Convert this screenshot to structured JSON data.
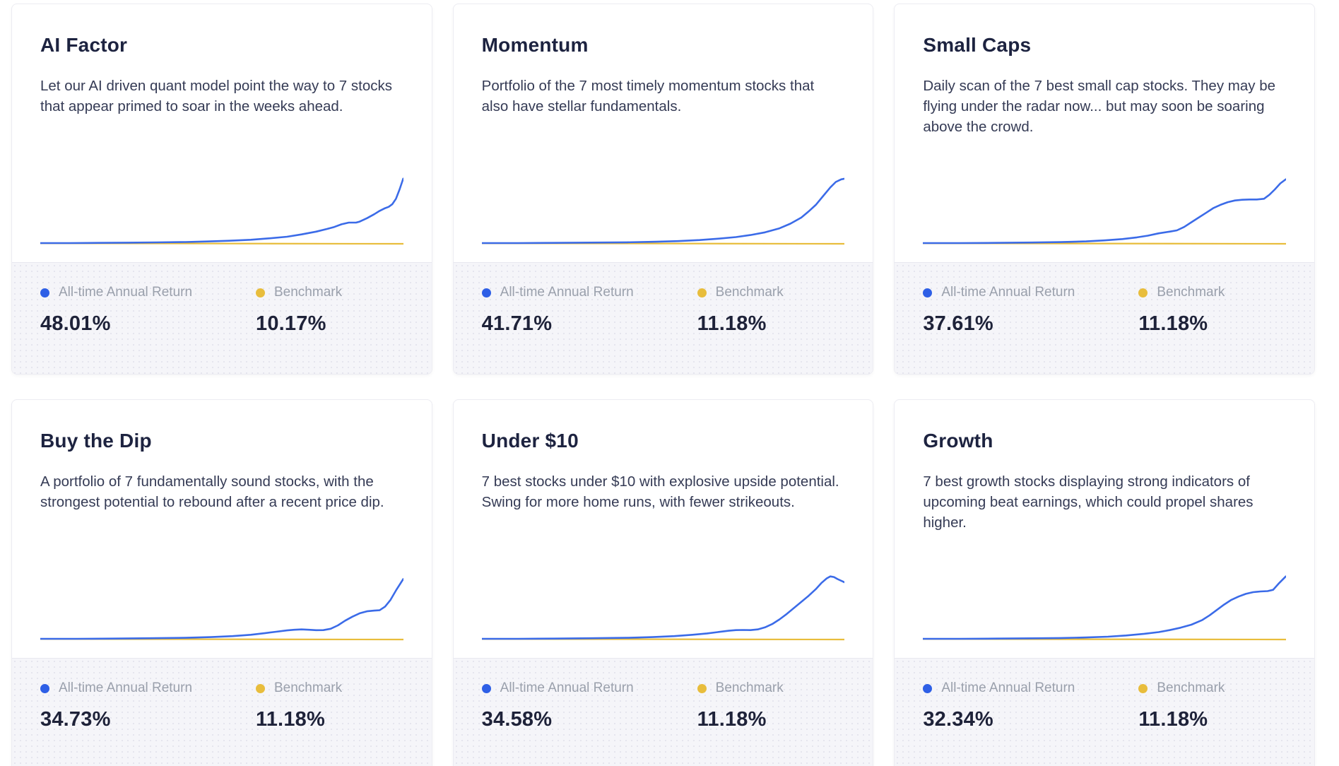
{
  "legend": {
    "return_label": "All-time Annual Return",
    "benchmark_label": "Benchmark"
  },
  "colors": {
    "return_line": "#3b6be8",
    "benchmark_line": "#e8bd3c",
    "title_text": "#1d2340",
    "footer_bg": "#f5f5f9"
  },
  "cards": [
    {
      "title": "AI Factor",
      "description": "Let our AI driven quant model point the way to 7 stocks that appear primed to soar in the weeks ahead.",
      "return_value": "48.01%",
      "benchmark_value": "10.17%"
    },
    {
      "title": "Momentum",
      "description": "Portfolio of the 7 most timely momentum stocks that also have stellar fundamentals.",
      "return_value": "41.71%",
      "benchmark_value": "11.18%"
    },
    {
      "title": "Small Caps",
      "description": "Daily scan of the 7 best small cap stocks. They may be flying under the radar now... but may soon be soaring above the crowd.",
      "return_value": "37.61%",
      "benchmark_value": "11.18%"
    },
    {
      "title": "Buy the Dip",
      "description": "A portfolio of 7 fundamentally sound stocks, with the strongest potential to rebound after a recent price dip.",
      "return_value": "34.73%",
      "benchmark_value": "11.18%"
    },
    {
      "title": "Under $10",
      "description": "7 best stocks under $10 with explosive upside potential. Swing for more home runs, with fewer strikeouts.",
      "return_value": "34.58%",
      "benchmark_value": "11.18%"
    },
    {
      "title": "Growth",
      "description": "7 best growth stocks displaying strong indicators of upcoming beat earnings, which could propel shares higher.",
      "return_value": "32.34%",
      "benchmark_value": "11.18%"
    }
  ],
  "chart_data": [
    {
      "type": "line",
      "title": "AI Factor sparkline (no axes shown)",
      "series": [
        {
          "name": "Benchmark",
          "color": "#e8bd3c",
          "width": 2.2,
          "points": [
            [
              0,
              -0.3
            ],
            [
              100,
              -1.0
            ]
          ]
        },
        {
          "name": "All-time Annual Return",
          "color": "#3b6be8",
          "width": 2.6,
          "points": [
            [
              0,
              0
            ],
            [
              8,
              0
            ],
            [
              16,
              0.3
            ],
            [
              24,
              0.6
            ],
            [
              32,
              1
            ],
            [
              40,
              1.6
            ],
            [
              46,
              2.4
            ],
            [
              52,
              3.5
            ],
            [
              58,
              5
            ],
            [
              63,
              7
            ],
            [
              68,
              9.5
            ],
            [
              72,
              13
            ],
            [
              76,
              17
            ],
            [
              79,
              21
            ],
            [
              81,
              24
            ],
            [
              83,
              28
            ],
            [
              85,
              30.5
            ],
            [
              87,
              30.5
            ],
            [
              88,
              32
            ],
            [
              90,
              37
            ],
            [
              92,
              43
            ],
            [
              93.5,
              48
            ],
            [
              95,
              52
            ],
            [
              96,
              54
            ],
            [
              97,
              58
            ],
            [
              98,
              66
            ],
            [
              99,
              80
            ],
            [
              100,
              96
            ]
          ]
        }
      ]
    },
    {
      "type": "line",
      "title": "Momentum sparkline (no axes shown)",
      "series": [
        {
          "name": "Benchmark",
          "color": "#e8bd3c",
          "width": 2.2,
          "points": [
            [
              0,
              -0.3
            ],
            [
              100,
              -1.0
            ]
          ]
        },
        {
          "name": "All-time Annual Return",
          "color": "#3b6be8",
          "width": 2.6,
          "points": [
            [
              0,
              0
            ],
            [
              10,
              0
            ],
            [
              20,
              0.3
            ],
            [
              30,
              0.7
            ],
            [
              40,
              1.2
            ],
            [
              48,
              2
            ],
            [
              54,
              3
            ],
            [
              60,
              4.5
            ],
            [
              65,
              6.5
            ],
            [
              70,
              9
            ],
            [
              74,
              12
            ],
            [
              78,
              16
            ],
            [
              82,
              22
            ],
            [
              85,
              29
            ],
            [
              88,
              38
            ],
            [
              90,
              47
            ],
            [
              92,
              57
            ],
            [
              94,
              70
            ],
            [
              96,
              83
            ],
            [
              97.5,
              91
            ],
            [
              99,
              95
            ],
            [
              100,
              96
            ]
          ]
        }
      ]
    },
    {
      "type": "line",
      "title": "Small Caps sparkline (no axes shown)",
      "series": [
        {
          "name": "Benchmark",
          "color": "#e8bd3c",
          "width": 2.2,
          "points": [
            [
              0,
              -0.3
            ],
            [
              100,
              -1.0
            ]
          ]
        },
        {
          "name": "All-time Annual Return",
          "color": "#3b6be8",
          "width": 2.6,
          "points": [
            [
              0,
              0
            ],
            [
              10,
              0
            ],
            [
              20,
              0.3
            ],
            [
              30,
              0.8
            ],
            [
              38,
              1.5
            ],
            [
              45,
              2.5
            ],
            [
              50,
              4
            ],
            [
              55,
              6
            ],
            [
              59,
              8.5
            ],
            [
              62,
              11
            ],
            [
              65,
              14.5
            ],
            [
              68,
              17
            ],
            [
              70,
              19
            ],
            [
              72,
              24
            ],
            [
              74,
              31
            ],
            [
              76,
              38
            ],
            [
              78,
              45
            ],
            [
              80,
              52
            ],
            [
              82,
              57
            ],
            [
              84,
              61
            ],
            [
              86,
              63.5
            ],
            [
              88,
              64.5
            ],
            [
              90,
              65
            ],
            [
              92,
              65
            ],
            [
              94,
              66
            ],
            [
              95.5,
              72
            ],
            [
              97,
              80
            ],
            [
              98.5,
              89
            ],
            [
              100,
              95
            ]
          ]
        }
      ]
    },
    {
      "type": "line",
      "title": "Buy the Dip sparkline (no axes shown)",
      "series": [
        {
          "name": "Benchmark",
          "color": "#e8bd3c",
          "width": 2.2,
          "points": [
            [
              0,
              -0.3
            ],
            [
              100,
              -1.0
            ]
          ]
        },
        {
          "name": "All-time Annual Return",
          "color": "#3b6be8",
          "width": 2.6,
          "points": [
            [
              0,
              0
            ],
            [
              10,
              0
            ],
            [
              20,
              0.3
            ],
            [
              30,
              0.8
            ],
            [
              40,
              1.5
            ],
            [
              47,
              2.5
            ],
            [
              53,
              4
            ],
            [
              58,
              6
            ],
            [
              62,
              8.5
            ],
            [
              65,
              10.5
            ],
            [
              68,
              12.5
            ],
            [
              70,
              13.5
            ],
            [
              72,
              14
            ],
            [
              74,
              13.5
            ],
            [
              76,
              12.8
            ],
            [
              78,
              13
            ],
            [
              80,
              15
            ],
            [
              82,
              20
            ],
            [
              84,
              27
            ],
            [
              86,
              33
            ],
            [
              88,
              38
            ],
            [
              90,
              41
            ],
            [
              92,
              42
            ],
            [
              93.5,
              42.5
            ],
            [
              95,
              48
            ],
            [
              96.5,
              58
            ],
            [
              98,
              72
            ],
            [
              100,
              89
            ]
          ]
        }
      ]
    },
    {
      "type": "line",
      "title": "Under $10 sparkline (no axes shown)",
      "series": [
        {
          "name": "Benchmark",
          "color": "#e8bd3c",
          "width": 2.2,
          "points": [
            [
              0,
              -0.3
            ],
            [
              100,
              -1.0
            ]
          ]
        },
        {
          "name": "All-time Annual Return",
          "color": "#3b6be8",
          "width": 2.6,
          "points": [
            [
              0,
              0
            ],
            [
              10,
              0
            ],
            [
              20,
              0.3
            ],
            [
              30,
              0.8
            ],
            [
              40,
              1.5
            ],
            [
              47,
              2.5
            ],
            [
              53,
              4
            ],
            [
              58,
              6
            ],
            [
              62,
              8
            ],
            [
              65,
              10
            ],
            [
              68,
              12
            ],
            [
              70,
              13
            ],
            [
              72,
              13.2
            ],
            [
              74,
              13
            ],
            [
              76,
              14
            ],
            [
              78,
              17
            ],
            [
              80,
              22
            ],
            [
              82,
              29
            ],
            [
              84,
              37
            ],
            [
              86,
              46
            ],
            [
              88,
              55
            ],
            [
              90,
              64
            ],
            [
              92,
              74
            ],
            [
              93.5,
              83
            ],
            [
              95,
              90
            ],
            [
              96,
              93
            ],
            [
              97,
              92
            ],
            [
              98,
              89
            ],
            [
              100,
              84
            ]
          ]
        }
      ]
    },
    {
      "type": "line",
      "title": "Growth sparkline (no axes shown)",
      "series": [
        {
          "name": "Benchmark",
          "color": "#e8bd3c",
          "width": 2.2,
          "points": [
            [
              0,
              -0.3
            ],
            [
              100,
              -1.0
            ]
          ]
        },
        {
          "name": "All-time Annual Return",
          "color": "#3b6be8",
          "width": 2.6,
          "points": [
            [
              0,
              0
            ],
            [
              10,
              0
            ],
            [
              20,
              0.3
            ],
            [
              30,
              0.7
            ],
            [
              38,
              1.2
            ],
            [
              45,
              2
            ],
            [
              51,
              3.2
            ],
            [
              56,
              5
            ],
            [
              61,
              7.5
            ],
            [
              65,
              10
            ],
            [
              68,
              13
            ],
            [
              71,
              16.5
            ],
            [
              74,
              21
            ],
            [
              77,
              28
            ],
            [
              79,
              35
            ],
            [
              81,
              43
            ],
            [
              83,
              51
            ],
            [
              85,
              58
            ],
            [
              87,
              63
            ],
            [
              89,
              67
            ],
            [
              91,
              69.5
            ],
            [
              93,
              70.5
            ],
            [
              95,
              71
            ],
            [
              96.5,
              73
            ],
            [
              98,
              82
            ],
            [
              100,
              93
            ]
          ]
        }
      ]
    }
  ]
}
